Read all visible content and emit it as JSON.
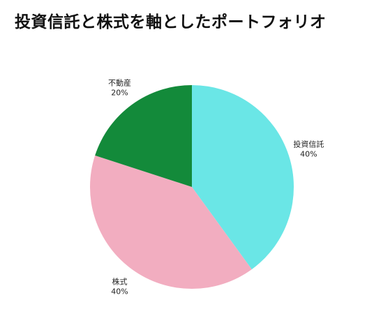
{
  "chart_data": {
    "type": "pie",
    "title": "投資信託と株式を軸としたポートフォリオ",
    "slices": [
      {
        "name": "投資信託",
        "value": 40,
        "value_label": "40%",
        "color": "#6ae6e6"
      },
      {
        "name": "株式",
        "value": 40,
        "value_label": "40%",
        "color": "#f2adc0"
      },
      {
        "name": "不動産",
        "value": 20,
        "value_label": "20%",
        "color": "#138a3a"
      }
    ],
    "start_angle": "12 o'clock",
    "direction": "clockwise",
    "legend": "none"
  }
}
